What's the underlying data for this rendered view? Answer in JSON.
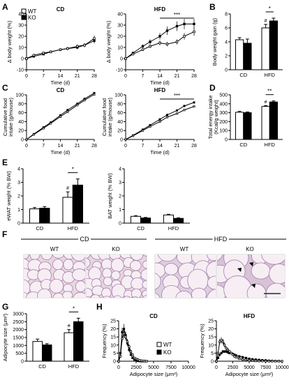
{
  "panel_labels": {
    "A": "A",
    "B": "B",
    "C": "C",
    "D": "D",
    "E": "E",
    "F": "F",
    "G": "G",
    "H": "H"
  },
  "legend": {
    "wt": "WT",
    "ko": "KO"
  },
  "chart_data": [
    {
      "id": "A_cd",
      "type": "line",
      "title": "CD",
      "xlabel": "Time (d)",
      "ylabel": "Δ body weight (%)",
      "xlim": [
        0,
        28
      ],
      "ylim": [
        -10,
        40
      ],
      "xticks": [
        "0",
        "7",
        "14",
        "21",
        "28"
      ],
      "yticks": [
        "-10",
        "0",
        "10",
        "20",
        "30",
        "40"
      ],
      "x": [
        0,
        3,
        7,
        10,
        14,
        17,
        21,
        24,
        28
      ],
      "series": [
        {
          "name": "WT",
          "values": [
            0,
            3,
            5,
            6,
            8,
            9,
            11,
            12,
            18
          ]
        },
        {
          "name": "KO",
          "values": [
            0,
            2,
            4,
            6,
            8,
            9,
            10,
            12,
            16
          ]
        }
      ]
    },
    {
      "id": "A_hfd",
      "type": "line",
      "title": "HFD",
      "xlabel": "Time (d)",
      "ylabel": "Δ body weight (%)",
      "xlim": [
        0,
        28
      ],
      "ylim": [
        -10,
        40
      ],
      "xticks": [
        "0",
        "7",
        "14",
        "21",
        "28"
      ],
      "yticks": [
        "-10",
        "0",
        "10",
        "20",
        "30",
        "40"
      ],
      "annotation": "***",
      "x": [
        0,
        3,
        7,
        10,
        14,
        17,
        21,
        24,
        28
      ],
      "series": [
        {
          "name": "WT",
          "values": [
            0,
            4,
            8,
            11,
            14,
            13,
            15,
            20,
            24
          ]
        },
        {
          "name": "KO",
          "values": [
            0,
            5,
            11,
            15,
            20,
            25,
            29,
            31,
            31
          ]
        }
      ]
    },
    {
      "id": "B",
      "type": "bar",
      "xlabel": "",
      "ylabel": "Body weight gain (g)",
      "ylim": [
        0,
        8
      ],
      "yticks": [
        "0",
        "2",
        "4",
        "6",
        "8"
      ],
      "categories": [
        "CD",
        "HFD"
      ],
      "annotation": "*",
      "hash": "#",
      "series": [
        {
          "name": "WT",
          "values": [
            4.3,
            6.0
          ],
          "err": [
            0.3,
            0.5
          ]
        },
        {
          "name": "KO",
          "values": [
            3.8,
            7.0
          ],
          "err": [
            0.6,
            0.4
          ]
        }
      ]
    },
    {
      "id": "C_cd",
      "type": "line",
      "title": "CD",
      "xlabel": "Time (d)",
      "ylabel": "Cumulative food intake (g/mouse)",
      "xlim": [
        0,
        28
      ],
      "ylim": [
        0,
        100
      ],
      "xticks": [
        "0",
        "7",
        "14",
        "21",
        "28"
      ],
      "yticks": [
        "0",
        "20",
        "40",
        "60",
        "80",
        "100"
      ],
      "x": [
        0,
        3,
        7,
        10,
        14,
        17,
        21,
        24,
        28
      ],
      "series": [
        {
          "name": "WT",
          "values": [
            0,
            11,
            25,
            36,
            51,
            62,
            77,
            88,
            101
          ]
        },
        {
          "name": "KO",
          "values": [
            0,
            12,
            27,
            38,
            54,
            66,
            80,
            91,
            104
          ]
        }
      ]
    },
    {
      "id": "C_hfd",
      "type": "line",
      "title": "HFD",
      "xlabel": "Time (d)",
      "ylabel": "Cumulative food intake (g/mouse)",
      "xlim": [
        0,
        28
      ],
      "ylim": [
        0,
        100
      ],
      "xticks": [
        "0",
        "7",
        "14",
        "21",
        "28"
      ],
      "yticks": [
        "0",
        "20",
        "40",
        "60",
        "80",
        "100"
      ],
      "annotation": "***",
      "x": [
        0,
        3,
        7,
        10,
        14,
        17,
        21,
        24,
        28
      ],
      "series": [
        {
          "name": "WT",
          "values": [
            0,
            8,
            20,
            29,
            40,
            50,
            58,
            66,
            74
          ]
        },
        {
          "name": "KO",
          "values": [
            0,
            9,
            22,
            32,
            45,
            55,
            65,
            75,
            83
          ]
        }
      ]
    },
    {
      "id": "D",
      "type": "bar",
      "xlabel": "",
      "ylabel": "Total energy intake (Kcal/g weight)",
      "ylim": [
        0,
        500
      ],
      "yticks": [
        "0",
        "100",
        "200",
        "300",
        "400",
        "500"
      ],
      "categories": [
        "CD",
        "HFD"
      ],
      "annotation": "**",
      "hash": "#",
      "series": [
        {
          "name": "WT",
          "values": [
            305,
            370
          ],
          "err": [
            10,
            10
          ]
        },
        {
          "name": "KO",
          "values": [
            300,
            420
          ],
          "err": [
            8,
            12
          ]
        }
      ]
    },
    {
      "id": "E_ewat",
      "type": "bar",
      "xlabel": "",
      "ylabel": "eWAT weight (% BW)",
      "ylim": [
        0,
        4
      ],
      "yticks": [
        "0",
        "1",
        "2",
        "3",
        "4"
      ],
      "categories": [
        "CD",
        "HFD"
      ],
      "annotation": "*",
      "hash": "#",
      "series": [
        {
          "name": "WT",
          "values": [
            1.05,
            1.9
          ],
          "err": [
            0.1,
            0.4
          ]
        },
        {
          "name": "KO",
          "values": [
            1.1,
            2.8
          ],
          "err": [
            0.12,
            0.45
          ]
        }
      ]
    },
    {
      "id": "E_bat",
      "type": "bar",
      "xlabel": "",
      "ylabel": "BAT weight (% BW)",
      "ylim": [
        0,
        4
      ],
      "yticks": [
        "0",
        "1",
        "2",
        "3",
        "4"
      ],
      "categories": [
        "CD",
        "HFD"
      ],
      "series": [
        {
          "name": "WT",
          "values": [
            0.5,
            0.6
          ],
          "err": [
            0.05,
            0.05
          ]
        },
        {
          "name": "KO",
          "values": [
            0.38,
            0.35
          ],
          "err": [
            0.04,
            0.04
          ]
        }
      ]
    },
    {
      "id": "G",
      "type": "bar",
      "xlabel": "",
      "ylabel": "Adipocyte size (μm²)",
      "ylim": [
        0,
        3000
      ],
      "yticks": [
        "0",
        "500",
        "1000",
        "1500",
        "2000",
        "2500",
        "3000"
      ],
      "categories": [
        "CD",
        "HFD"
      ],
      "annotation": "*",
      "hash": "#",
      "series": [
        {
          "name": "WT",
          "values": [
            1250,
            1800
          ],
          "err": [
            150,
            200
          ]
        },
        {
          "name": "KO",
          "values": [
            1030,
            2500
          ],
          "err": [
            80,
            220
          ]
        }
      ]
    },
    {
      "id": "H_cd",
      "type": "line",
      "title": "CD",
      "xlabel": "Adipocyte size (μm²)",
      "ylabel": "Frequency (%)",
      "xlim": [
        0,
        10000
      ],
      "ylim": [
        0,
        25
      ],
      "xticks": [
        "0",
        "2500",
        "5000",
        "7500",
        "10000"
      ],
      "yticks": [
        "0",
        "5",
        "10",
        "15",
        "20",
        "25"
      ],
      "x": [
        0,
        250,
        500,
        750,
        1000,
        1250,
        1500,
        1750,
        2000,
        2250,
        2500,
        2750,
        3000,
        3250,
        3500,
        3750,
        4000
      ],
      "series": [
        {
          "name": "WT",
          "values": [
            0,
            3,
            14,
            17,
            15,
            12,
            9,
            6,
            4,
            2,
            1.5,
            1,
            0.5,
            0.3,
            0.2,
            0.1,
            0
          ]
        },
        {
          "name": "KO",
          "values": [
            0,
            5,
            18,
            20,
            16,
            11,
            7,
            4,
            2,
            1,
            0.5,
            0.2,
            0.1,
            0,
            0,
            0,
            0
          ]
        }
      ]
    },
    {
      "id": "H_hfd",
      "type": "line",
      "title": "HFD",
      "xlabel": "Adipocyte size (μm²)",
      "ylabel": "Frequency (%)",
      "xlim": [
        0,
        10000
      ],
      "ylim": [
        0,
        25
      ],
      "xticks": [
        "0",
        "2500",
        "5000",
        "7500",
        "10000"
      ],
      "yticks": [
        "0",
        "5",
        "10",
        "15",
        "20",
        "25"
      ],
      "x": [
        0,
        250,
        500,
        750,
        1000,
        1250,
        1500,
        1750,
        2000,
        2250,
        2500,
        2750,
        3000,
        3500,
        4000,
        4500,
        5000,
        5500,
        6000,
        6500,
        7000,
        7500,
        8000,
        8500,
        9000,
        9500,
        10000
      ],
      "series": [
        {
          "name": "WT",
          "values": [
            0,
            5,
            12,
            13,
            12,
            10,
            8,
            7,
            6,
            5,
            4,
            3,
            2.5,
            1.5,
            1,
            0.8,
            0.5,
            0.3,
            0.2,
            0.1,
            0.1,
            0,
            0,
            0,
            0,
            0,
            0
          ]
        },
        {
          "name": "KO",
          "values": [
            0,
            2,
            4,
            5,
            6,
            6,
            6,
            5.5,
            5,
            5,
            4.5,
            4,
            3.5,
            3,
            2.5,
            2,
            1.5,
            1.2,
            1,
            0.8,
            0.6,
            0.5,
            0.3,
            0.2,
            0.1,
            0.1,
            0
          ]
        }
      ]
    }
  ],
  "histology": {
    "groups": [
      {
        "label": "CD"
      },
      {
        "label": "HFD"
      }
    ],
    "images": [
      {
        "label": "WT",
        "bg": "#e9d6df"
      },
      {
        "label": "KO",
        "bg": "#e8d4de"
      },
      {
        "label": "WT",
        "bg": "#dccfdf"
      },
      {
        "label": "KO",
        "bg": "#d8c2d6"
      }
    ]
  }
}
